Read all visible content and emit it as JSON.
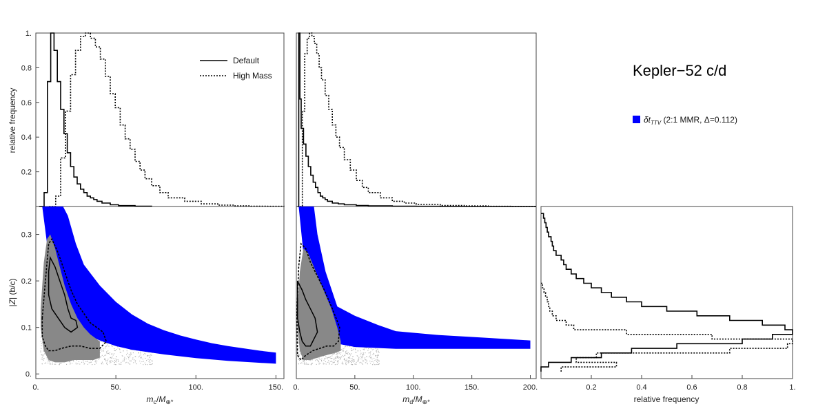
{
  "figure": {
    "title": "Kepler−52 c/d",
    "legend_blue": "δtⁱⁱ (2:1 MMR, Δ=0.112)",
    "legend_blue_prefix": "δt",
    "legend_blue_sub": "TTV",
    "legend_blue_rest": " (2:1 MMR, Δ=0.112)",
    "legend_default": "Default",
    "legend_high": "High Mass",
    "colors": {
      "blue_band": "#0000ff",
      "gray_region": "#888888",
      "line": "#000000"
    }
  },
  "chart_data": [
    {
      "id": "hist-mc",
      "type": "line",
      "xlim": [
        0,
        150
      ],
      "ylim": [
        0,
        1
      ],
      "ylabel": "relative frequency",
      "yticks": [
        "0.2",
        "0.4",
        "0.6",
        "0.8",
        "1."
      ],
      "series": [
        {
          "name": "Default",
          "style": "solid",
          "x": [
            2,
            5,
            7,
            9,
            11,
            13,
            15,
            17,
            19,
            21,
            23,
            25,
            27,
            29,
            31,
            33,
            35,
            37,
            40,
            45,
            50,
            60,
            70
          ],
          "y": [
            0,
            0.08,
            0.72,
            1.0,
            0.9,
            0.72,
            0.56,
            0.42,
            0.31,
            0.23,
            0.17,
            0.13,
            0.1,
            0.08,
            0.06,
            0.05,
            0.04,
            0.03,
            0.02,
            0.01,
            0.005,
            0.002,
            0
          ]
        },
        {
          "name": "High Mass",
          "style": "dotted",
          "x": [
            8,
            12,
            15,
            18,
            21,
            24,
            27,
            30,
            33,
            36,
            39,
            42,
            45,
            48,
            51,
            54,
            57,
            60,
            63,
            66,
            70,
            75,
            80,
            90,
            100,
            110,
            120,
            130,
            140,
            150
          ],
          "y": [
            0,
            0.06,
            0.28,
            0.55,
            0.76,
            0.9,
            0.98,
            1.0,
            0.97,
            0.92,
            0.85,
            0.75,
            0.65,
            0.57,
            0.47,
            0.39,
            0.33,
            0.26,
            0.21,
            0.16,
            0.12,
            0.08,
            0.05,
            0.03,
            0.015,
            0.008,
            0.004,
            0.002,
            0.001,
            0
          ]
        }
      ]
    },
    {
      "id": "hist-md",
      "type": "line",
      "xlim": [
        0,
        200
      ],
      "ylim": [
        0,
        1
      ],
      "series": [
        {
          "name": "Default",
          "style": "solid",
          "x": [
            1,
            2,
            3,
            4,
            6,
            8,
            10,
            12,
            14,
            16,
            18,
            20,
            22,
            24,
            26,
            30,
            35,
            40,
            50,
            60,
            80,
            100,
            120,
            200
          ],
          "y": [
            0,
            1.0,
            0.62,
            0.45,
            0.36,
            0.29,
            0.23,
            0.18,
            0.14,
            0.11,
            0.08,
            0.06,
            0.05,
            0.04,
            0.03,
            0.02,
            0.015,
            0.01,
            0.006,
            0.004,
            0.002,
            0.001,
            0,
            0
          ]
        },
        {
          "name": "High Mass",
          "style": "dotted",
          "x": [
            3,
            5,
            7,
            9,
            11,
            13,
            15,
            17,
            19,
            21,
            24,
            27,
            30,
            33,
            36,
            40,
            45,
            50,
            55,
            60,
            70,
            80,
            90,
            100,
            120,
            140,
            160,
            180,
            200
          ],
          "y": [
            0,
            0.55,
            0.88,
            0.97,
            1.0,
            0.98,
            0.94,
            0.88,
            0.8,
            0.73,
            0.64,
            0.56,
            0.47,
            0.4,
            0.34,
            0.27,
            0.21,
            0.15,
            0.11,
            0.08,
            0.05,
            0.03,
            0.02,
            0.012,
            0.006,
            0.003,
            0.001,
            0,
            0
          ]
        }
      ]
    },
    {
      "id": "scatter-mc",
      "type": "area",
      "xlim": [
        0,
        155
      ],
      "ylim": [
        -0.01,
        0.36
      ],
      "xlabel": "m_c/M_⊕*",
      "ylabel": "|Z| (b/c)",
      "xticks": [
        "0.",
        "50.",
        "100.",
        "150."
      ],
      "yticks": [
        "0.",
        "0.1",
        "0.2",
        "0.3"
      ],
      "blue_band_upper": {
        "x": [
          17,
          20,
          25,
          30,
          40,
          50,
          60,
          70,
          80,
          90,
          100,
          110,
          120,
          130,
          140,
          150
        ],
        "y": [
          0.36,
          0.34,
          0.28,
          0.235,
          0.19,
          0.155,
          0.128,
          0.108,
          0.094,
          0.083,
          0.074,
          0.066,
          0.06,
          0.055,
          0.05,
          0.046
        ]
      },
      "blue_band_lower": {
        "x": [
          4,
          10,
          20,
          30,
          40,
          50,
          60,
          80,
          100,
          120,
          150
        ],
        "y": [
          0.36,
          0.2,
          0.12,
          0.088,
          0.072,
          0.06,
          0.052,
          0.042,
          0.034,
          0.028,
          0.022
        ]
      },
      "gray_region": {
        "x": [
          3,
          5,
          7,
          9,
          12,
          15,
          18,
          22,
          26,
          30,
          34,
          38,
          40,
          40,
          36,
          30,
          24,
          18,
          12,
          8,
          5,
          3
        ],
        "y": [
          0.14,
          0.24,
          0.29,
          0.3,
          0.27,
          0.23,
          0.19,
          0.15,
          0.12,
          0.1,
          0.085,
          0.075,
          0.07,
          0.035,
          0.03,
          0.03,
          0.03,
          0.025,
          0.025,
          0.03,
          0.05,
          0.1
        ]
      },
      "contour_inner": {
        "x": [
          8,
          9,
          12,
          15,
          18,
          20,
          22,
          25,
          26,
          22,
          18,
          14,
          10,
          8
        ],
        "y": [
          0.22,
          0.25,
          0.23,
          0.2,
          0.17,
          0.14,
          0.12,
          0.115,
          0.1,
          0.09,
          0.1,
          0.12,
          0.14,
          0.17
        ]
      },
      "contour_outer": {
        "x": [
          4,
          6,
          8,
          10,
          14,
          18,
          22,
          26,
          30,
          34,
          38,
          42,
          44,
          40,
          34,
          28,
          22,
          16,
          12,
          8,
          6,
          4,
          4
        ],
        "y": [
          0.12,
          0.2,
          0.28,
          0.29,
          0.26,
          0.22,
          0.18,
          0.15,
          0.13,
          0.11,
          0.1,
          0.09,
          0.07,
          0.055,
          0.055,
          0.06,
          0.06,
          0.055,
          0.05,
          0.05,
          0.06,
          0.08,
          0.12
        ]
      }
    },
    {
      "id": "scatter-md",
      "type": "area",
      "xlim": [
        0,
        205
      ],
      "ylim": [
        -0.01,
        0.36
      ],
      "xlabel": "m_d/M_⊕*",
      "xticks": [
        "0.",
        "50.",
        "100.",
        "150.",
        "200."
      ],
      "blue_band_upper": {
        "x": [
          15,
          18,
          25,
          35,
          50,
          70,
          85,
          120,
          160,
          200
        ],
        "y": [
          0.36,
          0.3,
          0.22,
          0.145,
          0.125,
          0.105,
          0.092,
          0.084,
          0.078,
          0.072
        ]
      },
      "blue_band_lower": {
        "x": [
          2,
          10,
          20,
          35,
          50,
          85,
          120,
          160,
          200
        ],
        "y": [
          0.36,
          0.16,
          0.09,
          0.065,
          0.058,
          0.054,
          0.054,
          0.054,
          0.054
        ]
      },
      "gray_region": {
        "x": [
          1,
          3,
          6,
          10,
          15,
          20,
          25,
          30,
          35,
          38,
          38,
          33,
          25,
          18,
          12,
          6,
          3,
          1
        ],
        "y": [
          0.14,
          0.22,
          0.27,
          0.26,
          0.23,
          0.2,
          0.17,
          0.14,
          0.1,
          0.07,
          0.05,
          0.045,
          0.04,
          0.035,
          0.03,
          0.03,
          0.05,
          0.1
        ]
      },
      "contour_inner": {
        "x": [
          1,
          3,
          5,
          8,
          12,
          16,
          18,
          15,
          12,
          8,
          5,
          3,
          1
        ],
        "y": [
          0.2,
          0.19,
          0.18,
          0.16,
          0.14,
          0.12,
          0.09,
          0.075,
          0.06,
          0.06,
          0.07,
          0.09,
          0.12
        ]
      },
      "contour_outer": {
        "x": [
          0.5,
          2,
          4,
          8,
          12,
          18,
          24,
          30,
          34,
          37,
          36,
          32,
          26,
          20,
          14,
          8,
          4,
          1,
          0.5
        ],
        "y": [
          0.13,
          0.23,
          0.28,
          0.27,
          0.24,
          0.21,
          0.18,
          0.145,
          0.12,
          0.1,
          0.07,
          0.06,
          0.06,
          0.055,
          0.05,
          0.04,
          0.03,
          0.04,
          0.13
        ]
      }
    },
    {
      "id": "hist-z",
      "type": "line",
      "xlim": [
        0,
        1
      ],
      "ylim": [
        -0.01,
        0.36
      ],
      "xlabel": "relative frequency",
      "xticks": [
        "0.2",
        "0.4",
        "0.6",
        "0.8",
        "1."
      ],
      "series": [
        {
          "name": "Default",
          "style": "solid",
          "y": [
            0.005,
            0.015,
            0.025,
            0.035,
            0.045,
            0.055,
            0.065,
            0.075,
            0.085,
            0.095,
            0.105,
            0.115,
            0.125,
            0.135,
            0.145,
            0.155,
            0.165,
            0.175,
            0.185,
            0.195,
            0.205,
            0.215,
            0.225,
            0.235,
            0.245,
            0.255,
            0.265,
            0.275,
            0.285,
            0.295,
            0.305,
            0.315,
            0.325,
            0.335,
            0.345
          ],
          "x": [
            0,
            0.03,
            0.12,
            0.24,
            0.36,
            0.54,
            0.8,
            0.92,
            1.0,
            0.97,
            0.88,
            0.75,
            0.62,
            0.5,
            0.4,
            0.34,
            0.28,
            0.24,
            0.2,
            0.17,
            0.14,
            0.12,
            0.1,
            0.09,
            0.08,
            0.06,
            0.05,
            0.045,
            0.04,
            0.03,
            0.025,
            0.02,
            0.015,
            0.01,
            0.0
          ]
        },
        {
          "name": "High Mass",
          "style": "dotted",
          "y": [
            0.005,
            0.015,
            0.025,
            0.035,
            0.045,
            0.055,
            0.065,
            0.075,
            0.085,
            0.095,
            0.105,
            0.115,
            0.125,
            0.135,
            0.145,
            0.155,
            0.165,
            0.175,
            0.185,
            0.195
          ],
          "x": [
            0.08,
            0.3,
            0.14,
            0.22,
            0.75,
            0.98,
            1.0,
            0.68,
            0.34,
            0.13,
            0.1,
            0.06,
            0.045,
            0.035,
            0.03,
            0.025,
            0.018,
            0.012,
            0.006,
            0.0
          ]
        }
      ]
    }
  ]
}
